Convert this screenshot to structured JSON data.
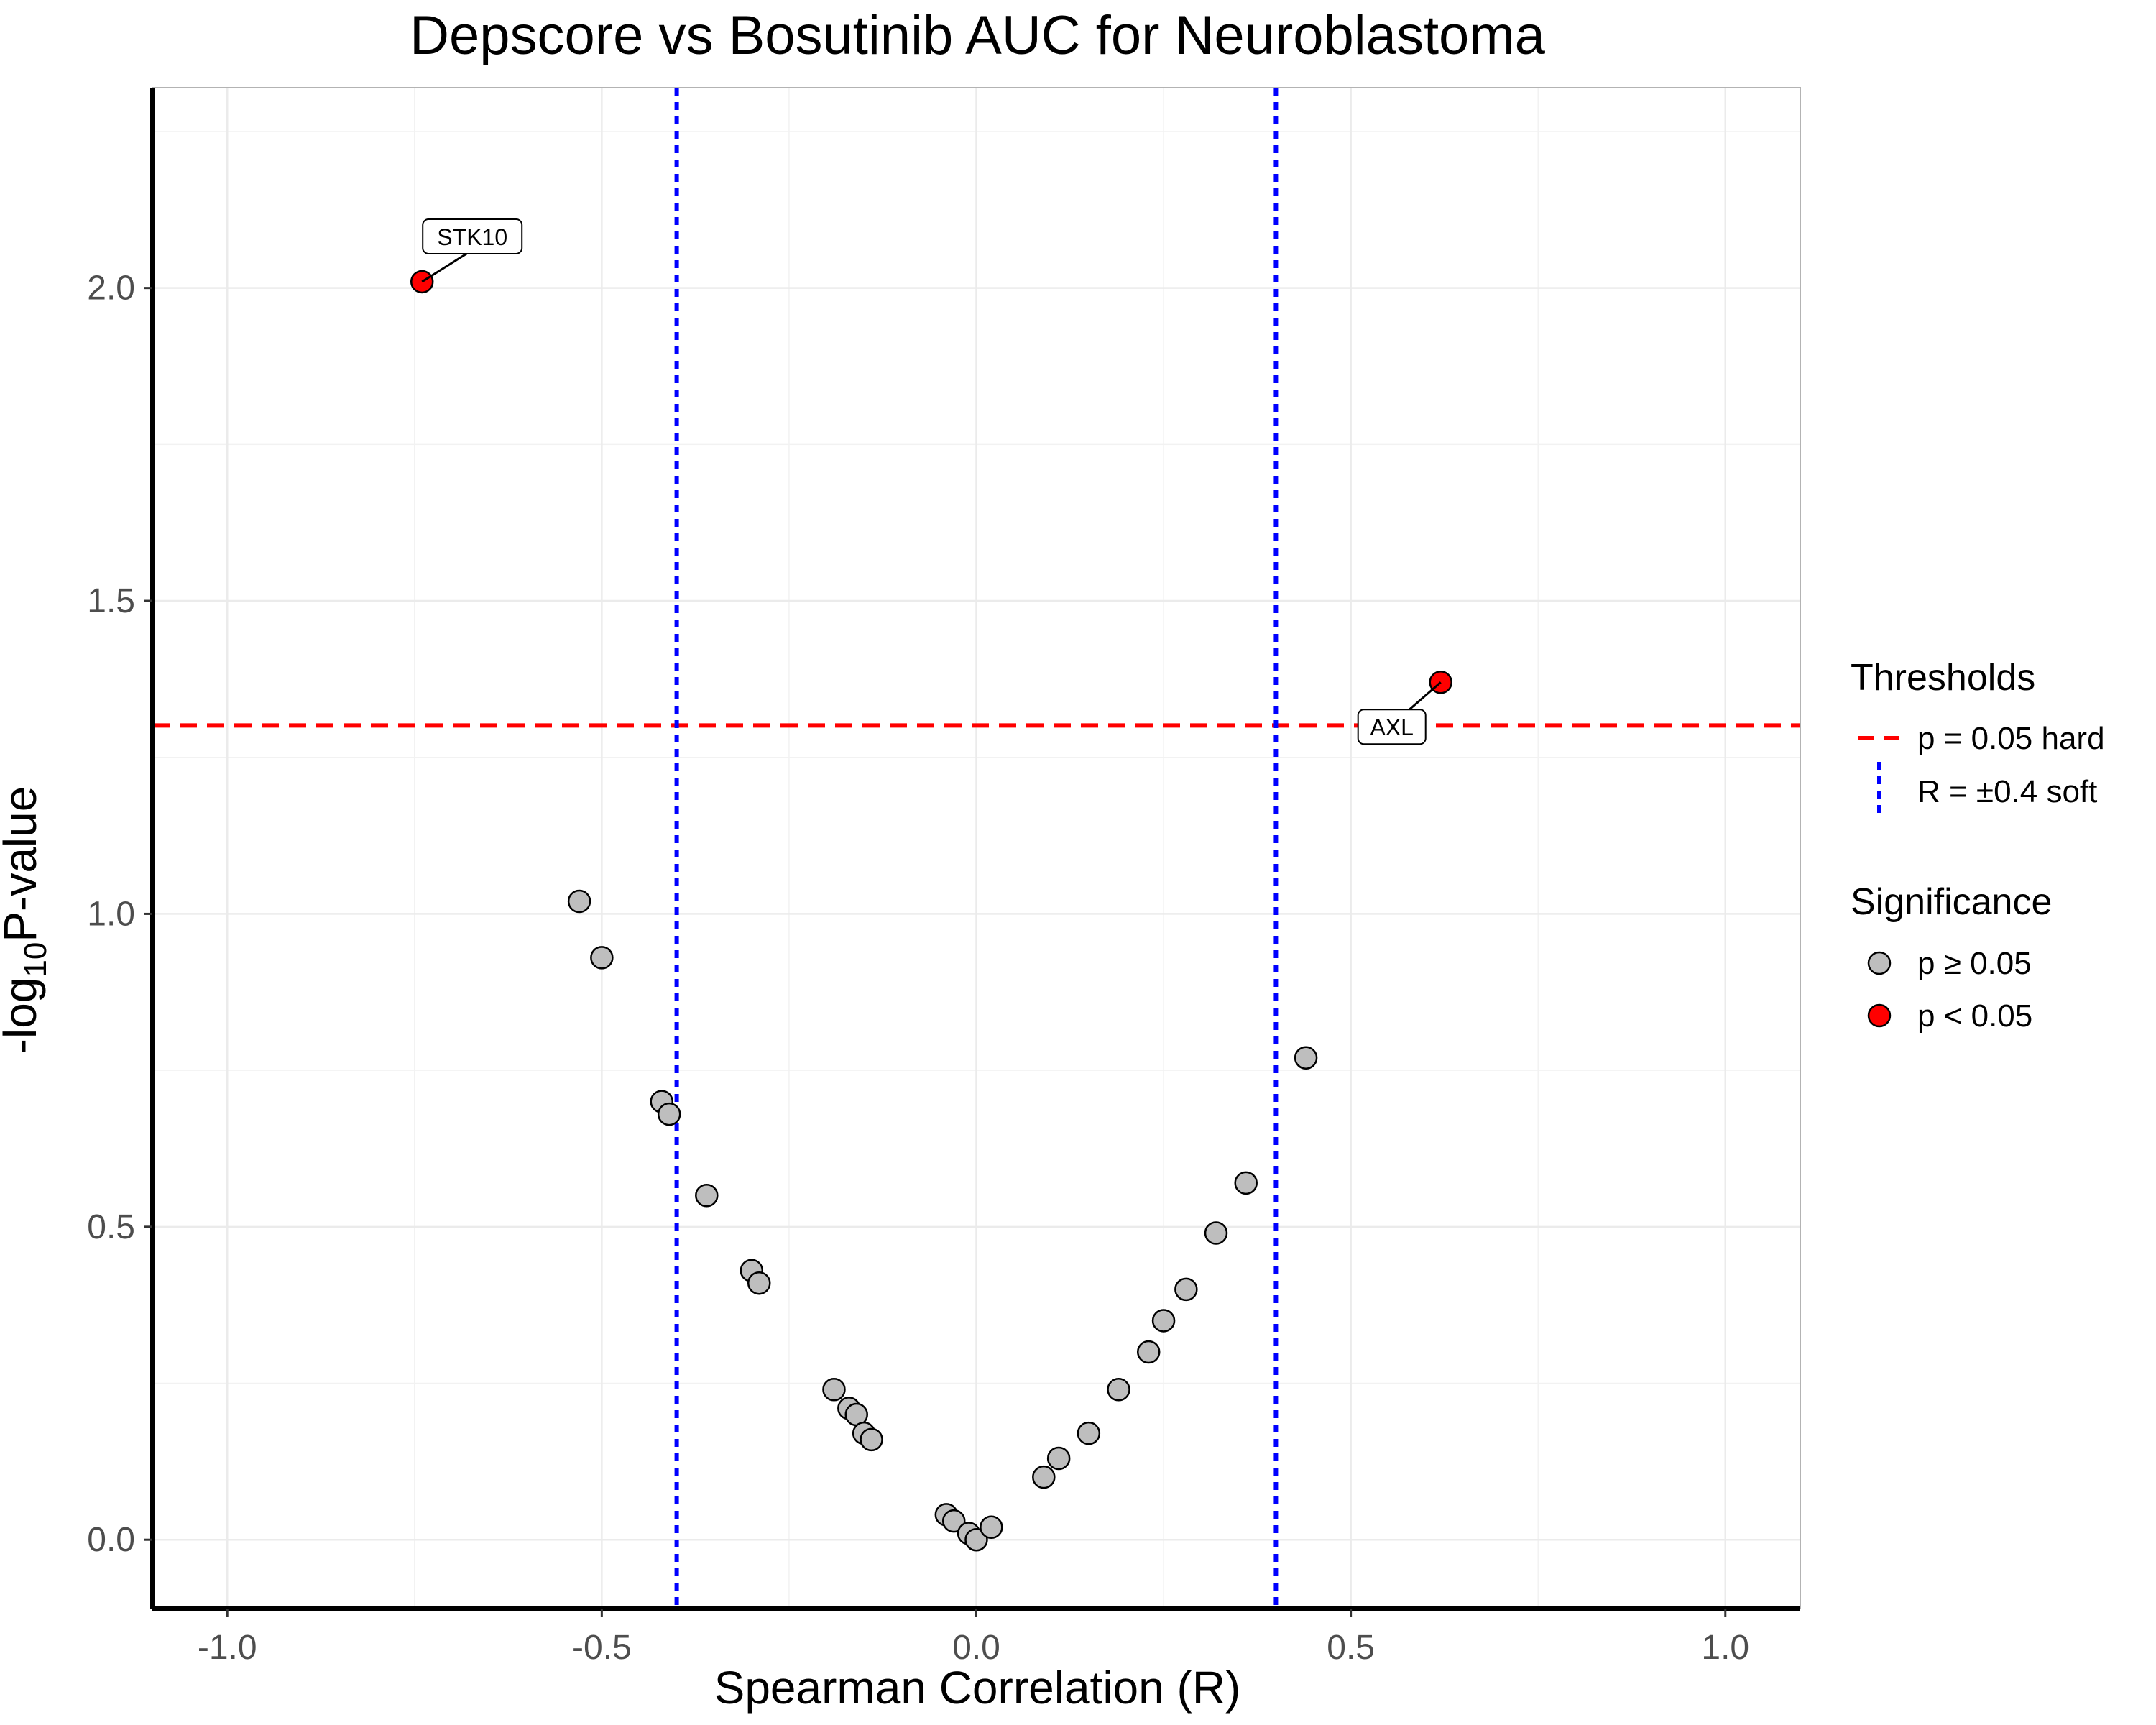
{
  "chart_data": {
    "type": "scatter",
    "title": "Depscore vs Bosutinib AUC for Neuroblastoma",
    "xlabel": "Spearman Correlation (R)",
    "ylabel": {
      "prefix": "-log",
      "subscript": "10",
      "suffix": "P-value"
    },
    "xlim": [
      -1.1,
      1.1
    ],
    "ylim": [
      -0.11,
      2.32
    ],
    "x_ticks": [
      -1.0,
      -0.5,
      0.0,
      0.5,
      1.0
    ],
    "x_tick_labels": [
      "-1.0",
      "-0.5",
      "0.0",
      "0.5",
      "1.0"
    ],
    "y_ticks": [
      0.0,
      0.5,
      1.0,
      1.5,
      2.0
    ],
    "y_tick_labels": [
      "0.0",
      "0.5",
      "1.0",
      "1.5",
      "2.0"
    ],
    "grid": true,
    "thresholds": {
      "p_hard": {
        "y": 1.301,
        "color": "#ff0000",
        "style": "dashed"
      },
      "r_soft": {
        "x": [
          -0.4,
          0.4
        ],
        "color": "#0000ff",
        "style": "dotted"
      }
    },
    "points": [
      {
        "x": -0.74,
        "y": 2.01,
        "sig": true,
        "label": "STK10"
      },
      {
        "x": 0.62,
        "y": 1.37,
        "sig": true,
        "label": "AXL"
      },
      {
        "x": -0.53,
        "y": 1.02,
        "sig": false
      },
      {
        "x": -0.5,
        "y": 0.93,
        "sig": false
      },
      {
        "x": -0.42,
        "y": 0.7,
        "sig": false
      },
      {
        "x": -0.41,
        "y": 0.68,
        "sig": false
      },
      {
        "x": -0.36,
        "y": 0.55,
        "sig": false
      },
      {
        "x": -0.3,
        "y": 0.43,
        "sig": false
      },
      {
        "x": -0.29,
        "y": 0.41,
        "sig": false
      },
      {
        "x": -0.19,
        "y": 0.24,
        "sig": false
      },
      {
        "x": -0.17,
        "y": 0.21,
        "sig": false
      },
      {
        "x": -0.16,
        "y": 0.2,
        "sig": false
      },
      {
        "x": -0.15,
        "y": 0.17,
        "sig": false
      },
      {
        "x": -0.14,
        "y": 0.16,
        "sig": false
      },
      {
        "x": -0.04,
        "y": 0.04,
        "sig": false
      },
      {
        "x": -0.03,
        "y": 0.03,
        "sig": false
      },
      {
        "x": -0.01,
        "y": 0.01,
        "sig": false
      },
      {
        "x": 0.0,
        "y": 0.0,
        "sig": false
      },
      {
        "x": 0.02,
        "y": 0.02,
        "sig": false
      },
      {
        "x": 0.09,
        "y": 0.1,
        "sig": false
      },
      {
        "x": 0.11,
        "y": 0.13,
        "sig": false
      },
      {
        "x": 0.15,
        "y": 0.17,
        "sig": false
      },
      {
        "x": 0.19,
        "y": 0.24,
        "sig": false
      },
      {
        "x": 0.23,
        "y": 0.3,
        "sig": false
      },
      {
        "x": 0.25,
        "y": 0.35,
        "sig": false
      },
      {
        "x": 0.28,
        "y": 0.4,
        "sig": false
      },
      {
        "x": 0.32,
        "y": 0.49,
        "sig": false
      },
      {
        "x": 0.36,
        "y": 0.57,
        "sig": false
      },
      {
        "x": 0.44,
        "y": 0.77,
        "sig": false
      }
    ],
    "legend": {
      "position": "right",
      "thresholds_title": "Thresholds",
      "thresholds_items": [
        "p = 0.05 hard",
        "R = ±0.4 soft"
      ],
      "significance_title": "Significance",
      "significance_items": [
        "p ≥ 0.05",
        "p < 0.05"
      ]
    },
    "colors": {
      "nonsig": "#bebebe",
      "sig": "#ff0000",
      "grid": "#ebebeb",
      "axis": "#000000",
      "tick_text": "#4d4d4d"
    }
  }
}
